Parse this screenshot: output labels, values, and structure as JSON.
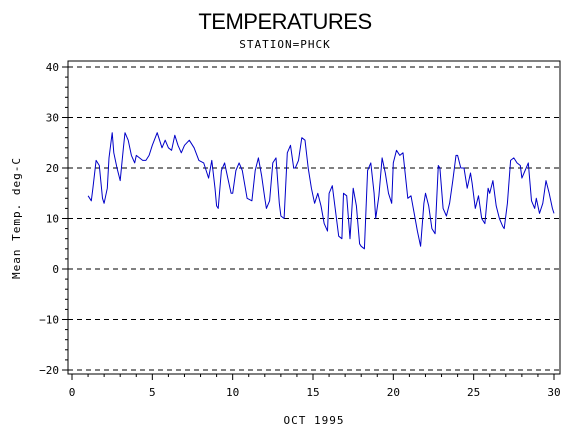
{
  "chart_data": {
    "type": "line",
    "title": "TEMPERATURES",
    "subtitle": "STATION=PHCK",
    "xlabel": "OCT 1995",
    "ylabel": "Mean Temp. deg-C",
    "xlim": [
      0,
      30
    ],
    "ylim": [
      -20,
      40
    ],
    "xticks": [
      0,
      5,
      10,
      15,
      20,
      25,
      30
    ],
    "yticks": [
      -20,
      -10,
      0,
      10,
      20,
      30,
      40
    ],
    "grid": "horizontal-dashed",
    "line_color": "#0000c8",
    "series": [
      {
        "x": [
          1.0,
          1.2,
          1.3,
          1.5,
          1.7,
          1.9,
          2.0,
          2.2,
          2.3,
          2.5,
          2.6,
          2.8,
          3.0,
          3.2,
          3.3,
          3.5,
          3.7,
          3.9,
          4.0,
          4.2,
          4.4,
          4.6,
          4.8,
          5.0,
          5.3,
          5.6,
          5.8,
          6.0,
          6.2,
          6.4,
          6.6,
          6.8,
          7.0,
          7.3,
          7.6,
          7.9,
          8.2,
          8.5,
          8.7,
          8.9,
          9.0,
          9.1,
          9.3,
          9.5,
          9.7,
          9.9,
          10.0,
          10.2,
          10.4,
          10.6,
          10.9,
          11.2,
          11.4,
          11.6,
          11.8,
          12.0,
          12.1,
          12.3,
          12.5,
          12.7,
          12.9,
          13.0,
          13.2,
          13.4,
          13.6,
          13.8,
          13.9,
          14.1,
          14.3,
          14.5,
          14.7,
          14.9,
          15.1,
          15.3,
          15.5,
          15.7,
          15.9,
          16.0,
          16.2,
          16.4,
          16.6,
          16.8,
          16.9,
          17.1,
          17.3,
          17.5,
          17.7,
          17.9,
          18.0,
          18.2,
          18.4,
          18.6,
          18.8,
          18.9,
          19.1,
          19.3,
          19.5,
          19.7,
          19.9,
          20.0,
          20.2,
          20.4,
          20.6,
          20.8,
          20.9,
          21.1,
          21.3,
          21.5,
          21.7,
          21.9,
          22.0,
          22.2,
          22.4,
          22.6,
          22.8,
          22.9,
          23.1,
          23.3,
          23.5,
          23.7,
          23.9,
          24.0,
          24.2,
          24.4,
          24.6,
          24.8,
          24.9,
          25.1,
          25.3,
          25.5,
          25.7,
          25.9,
          26.0,
          26.2,
          26.4,
          26.6,
          26.8,
          26.9,
          27.1,
          27.3,
          27.5,
          27.7,
          27.9,
          28.0,
          28.2,
          28.4,
          28.6,
          28.8,
          28.9,
          29.1,
          29.3,
          29.5,
          29.7,
          29.9,
          30.0
        ],
        "values": [
          14.5,
          13.5,
          16.0,
          21.5,
          20.5,
          14.0,
          13.0,
          16.0,
          22.0,
          27.0,
          23.0,
          20.0,
          17.5,
          24.0,
          27.0,
          25.5,
          22.5,
          21.0,
          22.5,
          22.0,
          21.5,
          21.5,
          22.5,
          24.5,
          27.0,
          24.0,
          25.5,
          24.0,
          23.5,
          26.5,
          24.5,
          23.0,
          24.5,
          25.5,
          24.0,
          21.5,
          21.0,
          18.0,
          21.5,
          16.0,
          12.5,
          12.0,
          19.5,
          21.0,
          18.0,
          15.0,
          15.0,
          19.5,
          21.0,
          19.5,
          14.0,
          13.5,
          19.5,
          22.0,
          18.5,
          14.0,
          12.0,
          13.5,
          21.0,
          22.0,
          13.0,
          10.5,
          10.0,
          23.0,
          24.5,
          20.0,
          20.0,
          21.5,
          26.0,
          25.5,
          20.0,
          16.0,
          13.0,
          15.0,
          12.5,
          9.0,
          7.5,
          15.0,
          16.5,
          11.5,
          6.5,
          6.0,
          15.0,
          14.5,
          6.0,
          16.0,
          12.5,
          5.0,
          4.5,
          4.0,
          19.5,
          21.0,
          15.0,
          10.0,
          14.5,
          22.0,
          19.0,
          15.0,
          13.0,
          21.0,
          23.5,
          22.5,
          23.0,
          17.0,
          14.0,
          14.5,
          11.0,
          7.5,
          4.5,
          13.0,
          15.0,
          12.5,
          8.0,
          7.0,
          20.5,
          20.0,
          12.0,
          10.5,
          13.0,
          17.5,
          22.5,
          22.5,
          20.0,
          20.0,
          16.0,
          19.0,
          17.0,
          12.0,
          14.5,
          10.0,
          9.0,
          16.0,
          15.0,
          17.5,
          12.5,
          10.0,
          8.5,
          8.0,
          13.0,
          21.5,
          22.0,
          21.0,
          20.5,
          18.0,
          19.5,
          21.0,
          13.5,
          12.0,
          14.0,
          11.0,
          13.0,
          17.5,
          15.0,
          12.0,
          11.0
        ]
      }
    ]
  }
}
